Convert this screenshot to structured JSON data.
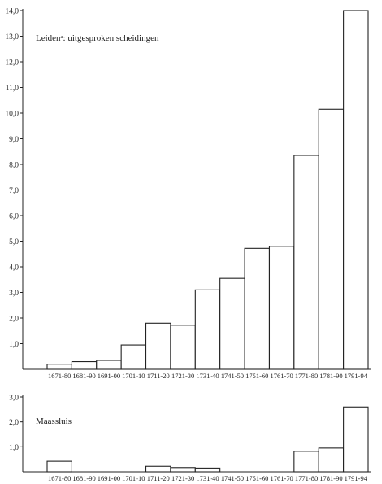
{
  "chart_data": [
    {
      "type": "bar",
      "title": "Leidenᵃ: uitgesproken scheidingen",
      "xlabel": "",
      "ylabel": "",
      "ylim": [
        0,
        14
      ],
      "yticks": [
        "1,0",
        "2,0",
        "3,0",
        "4,0",
        "5,0",
        "6,0",
        "7,0",
        "8,0",
        "9,0",
        "10,0",
        "11,0",
        "12,0",
        "13,0",
        "14,0"
      ],
      "categories": [
        "1671-80",
        "1681-90",
        "1691-00",
        "1701-10",
        "1711-20",
        "1721-30",
        "1731-40",
        "1741-50",
        "1751-60",
        "1761-70",
        "1771-80",
        "1781-90",
        "1791-94"
      ],
      "values": [
        0.2,
        0.3,
        0.35,
        0.95,
        1.8,
        1.72,
        3.1,
        3.55,
        4.72,
        4.8,
        8.35,
        10.15,
        14.0
      ],
      "grid": false
    },
    {
      "type": "bar",
      "title": "Maassluis",
      "xlabel": "",
      "ylabel": "",
      "ylim": [
        0,
        3
      ],
      "yticks": [
        "1,0",
        "2,0",
        "3,0"
      ],
      "categories": [
        "1671-80",
        "1681-90",
        "1691-00",
        "1701-10",
        "1711-20",
        "1721-30",
        "1731-40",
        "1741-50",
        "1751-60",
        "1761-70",
        "1771-80",
        "1781-90",
        "1791-94"
      ],
      "values": [
        0.42,
        0,
        0,
        0,
        0.22,
        0.17,
        0.15,
        0,
        0,
        0,
        0.82,
        0.95,
        2.6
      ],
      "grid": false
    }
  ]
}
